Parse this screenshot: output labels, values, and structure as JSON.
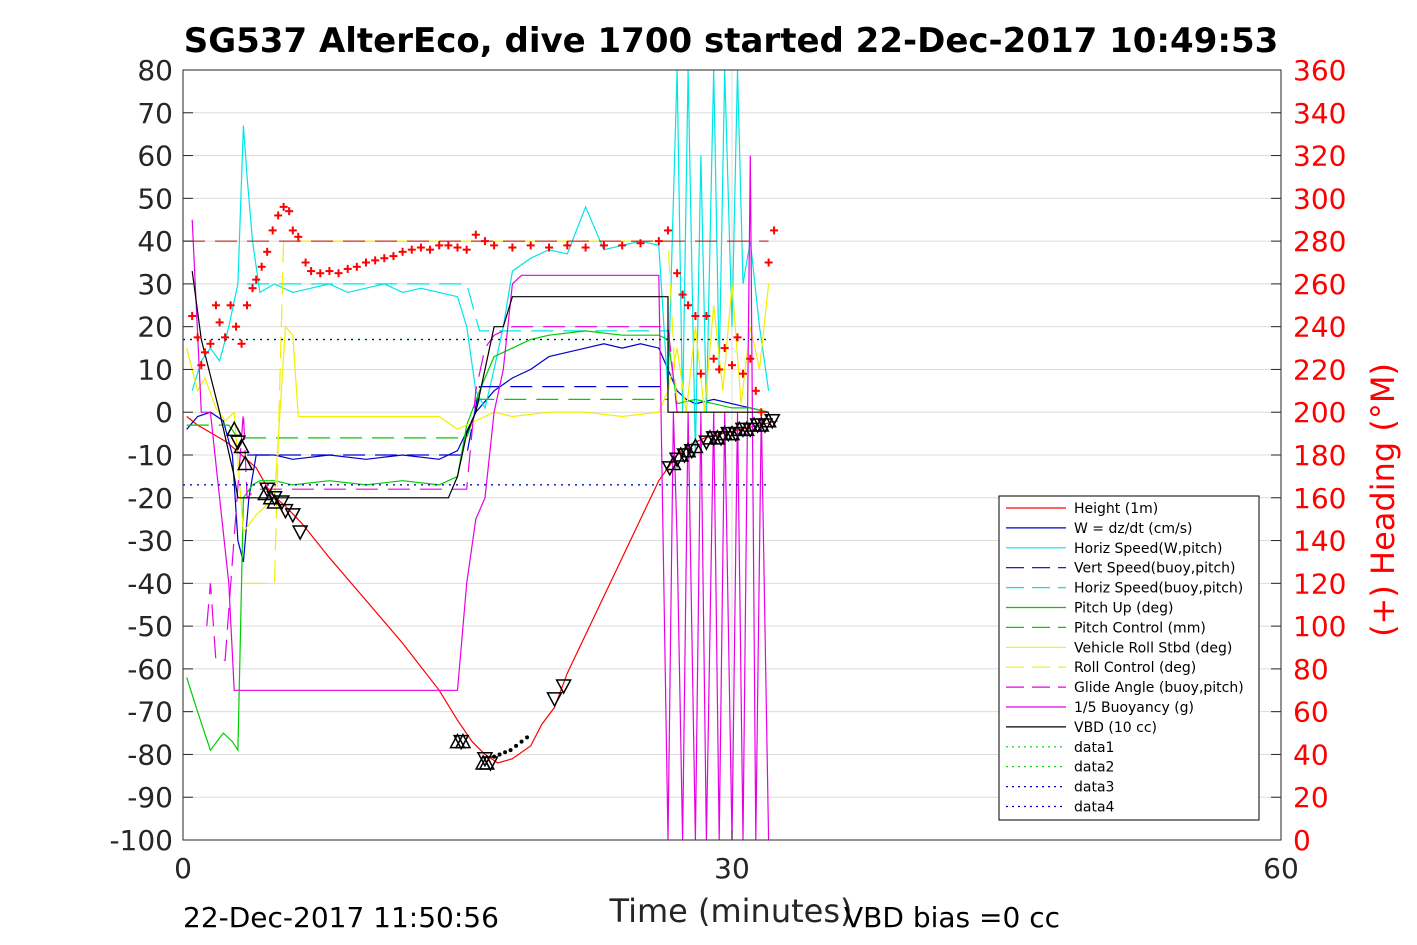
{
  "title": "SG537 AlterEco, dive 1700 started 22-Dec-2017 10:49:53",
  "footer_left": "22-Dec-2017 11:50:56",
  "footer_right": "VBD bias =0 cc",
  "colors": {
    "red": "#ff0000",
    "blue": "#0000cc",
    "cyan": "#00e5e5",
    "green": "#00cc00",
    "yellow": "#f0f000",
    "magenta": "#e600e6",
    "black": "#000000",
    "grid": "#dcdcdc",
    "axis": "#262626"
  },
  "chart_data": {
    "type": "line",
    "title": "SG537 AlterEco, dive 1700 started 22-Dec-2017 10:49:53",
    "xlabel": "Time (minutes)",
    "ylabel": "",
    "y2label": "(+) Heading (°M)",
    "xlim": [
      0,
      60
    ],
    "ylim": [
      -100,
      80
    ],
    "y2lim": [
      0,
      360
    ],
    "x_ticks": [
      0,
      30,
      60
    ],
    "y_ticks": [
      80,
      70,
      60,
      50,
      40,
      30,
      20,
      10,
      0,
      -10,
      -20,
      -30,
      -40,
      -50,
      -60,
      -70,
      -80,
      -90,
      -100
    ],
    "y2_ticks": [
      360,
      340,
      320,
      300,
      280,
      260,
      240,
      220,
      200,
      180,
      160,
      140,
      120,
      100,
      80,
      60,
      40,
      20,
      0
    ],
    "grid": true,
    "legend_position": "lower-right",
    "legend": [
      {
        "label": "Height (1m)",
        "color": "#ff0000",
        "style": "solid"
      },
      {
        "label": "W = dz/dt (cm/s)",
        "color": "#0000cc",
        "style": "solid"
      },
      {
        "label": "Horiz Speed(W,pitch)",
        "color": "#00e5e5",
        "style": "solid"
      },
      {
        "label": "Vert Speed(buoy,pitch)",
        "color": "#0000cc",
        "style": "dashed"
      },
      {
        "label": "Horiz Speed(buoy,pitch)",
        "color": "#00e5e5",
        "style": "dashed"
      },
      {
        "label": "Pitch Up (deg)",
        "color": "#00cc00",
        "style": "solid"
      },
      {
        "label": "Pitch Control (mm)",
        "color": "#00cc00",
        "style": "dashed"
      },
      {
        "label": "Vehicle Roll Stbd (deg)",
        "color": "#f0f000",
        "style": "solid"
      },
      {
        "label": "Roll Control (deg)",
        "color": "#f0f000",
        "style": "dashed"
      },
      {
        "label": "Glide Angle (buoy,pitch)",
        "color": "#e600e6",
        "style": "dashed"
      },
      {
        "label": "1/5 Buoyancy (g)",
        "color": "#e600e6",
        "style": "solid"
      },
      {
        "label": "VBD (10 cc)",
        "color": "#000000",
        "style": "solid"
      },
      {
        "label": "data1",
        "color": "#00cc00",
        "style": "dotted"
      },
      {
        "label": "data2",
        "color": "#00cc00",
        "style": "dotted"
      },
      {
        "label": "data3",
        "color": "#0000cc",
        "style": "dotted"
      },
      {
        "label": "data4",
        "color": "#0000cc",
        "style": "dotted"
      }
    ],
    "series": [
      {
        "name": "Height (1m)",
        "color": "#ff0000",
        "style": "solid",
        "x": [
          0.2,
          0.8,
          1.6,
          2.4,
          3.2,
          4.0,
          4.8,
          5.6,
          6.5,
          8.0,
          10.0,
          12.0,
          14.0,
          15.0,
          15.8,
          16.5,
          17.2,
          18.0,
          19.0,
          19.6,
          20.3,
          21.0,
          22.0,
          23.0,
          24.0,
          25.0,
          26.0,
          26.5,
          27.0,
          27.5,
          28.0,
          28.5,
          29.0,
          29.5,
          30.0,
          30.5,
          31.0,
          31.5,
          32.0,
          32.5
        ],
        "y": [
          -1,
          -3,
          -5,
          -7,
          -10,
          -13,
          -19,
          -22,
          -26,
          -34,
          -44,
          -54,
          -65,
          -72,
          -77,
          -80,
          -82,
          -81,
          -78,
          -73,
          -69,
          -61,
          -52,
          -43,
          -34,
          -25,
          -16,
          -13,
          -10,
          -8,
          -7,
          -6,
          -5.5,
          -5,
          -4.5,
          -4,
          -3.5,
          -3,
          -2.5,
          -2
        ]
      },
      {
        "name": "W = dz/dt (cm/s)",
        "color": "#0000cc",
        "style": "solid",
        "x": [
          0.2,
          0.8,
          1.5,
          2.2,
          2.7,
          3.0,
          3.3,
          3.6,
          4.0,
          5.0,
          6.0,
          8.0,
          10.0,
          12.0,
          14.0,
          15.0,
          16.0,
          17.0,
          18.0,
          19.0,
          20.0,
          21.0,
          22.0,
          23.0,
          24.0,
          25.0,
          26.0,
          26.5,
          27.0,
          27.5,
          28.0,
          29.0,
          30.0,
          31.0,
          32.0
        ],
        "y": [
          -4,
          -1,
          0,
          -2,
          -10,
          -30,
          -35,
          -20,
          -10,
          -10,
          -11,
          -10,
          -11,
          -10,
          -11,
          -9,
          0,
          5,
          8,
          10,
          13,
          14,
          15,
          16,
          15,
          16,
          15,
          10,
          5,
          3,
          2,
          3,
          2,
          1,
          0
        ]
      },
      {
        "name": "Horiz Speed(W,pitch)",
        "color": "#00e5e5",
        "style": "solid",
        "x": [
          0.5,
          1.0,
          1.5,
          2.0,
          2.5,
          3.0,
          3.3,
          3.5,
          3.8,
          4.2,
          5.0,
          6.0,
          7.0,
          8.0,
          9.0,
          10.0,
          11.0,
          12.0,
          13.0,
          14.0,
          15.0,
          15.5,
          16.0,
          16.5,
          17.0,
          17.5,
          18.0,
          19.0,
          20.0,
          21.0,
          22.0,
          23.0,
          24.0,
          25.0,
          26.0,
          26.5,
          27.0,
          27.3,
          27.6,
          28.0,
          28.3,
          28.6,
          29.0,
          29.3,
          29.6,
          30.0,
          30.3,
          30.6,
          31.0,
          31.5,
          32.0
        ],
        "y": [
          5,
          12,
          15,
          12,
          20,
          30,
          67,
          55,
          40,
          28,
          30,
          28,
          29,
          30,
          28,
          29,
          30,
          28,
          29,
          28,
          27,
          20,
          5,
          1,
          10,
          20,
          33,
          36,
          38,
          37,
          48,
          38,
          39,
          40,
          39,
          5,
          80,
          0,
          80,
          -10,
          60,
          0,
          80,
          10,
          80,
          20,
          80,
          30,
          40,
          20,
          5
        ]
      },
      {
        "name": "Vert Speed(buoy,pitch)",
        "color": "#0000cc",
        "style": "dashed",
        "x": [
          3.5,
          15.5,
          16.2,
          26.5
        ],
        "y": [
          -10,
          -10,
          6,
          6
        ]
      },
      {
        "name": "Horiz Speed(buoy,pitch)",
        "color": "#00e5e5",
        "style": "dashed",
        "x": [
          3.5,
          15.5,
          16.2,
          26.5
        ],
        "y": [
          30,
          30,
          19,
          19
        ]
      },
      {
        "name": "Pitch Up (deg)",
        "color": "#00cc00",
        "style": "solid",
        "x": [
          0.2,
          0.8,
          1.5,
          2.2,
          2.7,
          3.0,
          3.3,
          3.8,
          4.2,
          5.0,
          6.0,
          8.0,
          10.0,
          12.0,
          14.0,
          15.0,
          15.5,
          16.2,
          17.0,
          18.0,
          19.0,
          20.0,
          22.0,
          24.0,
          26.0,
          26.5,
          27.0,
          28.0,
          29.0,
          30.0,
          31.0,
          32.0
        ],
        "y": [
          -62,
          -70,
          -79,
          -75,
          -77,
          -79,
          -20,
          -17,
          -16,
          -16,
          -17,
          -16,
          -17,
          -16,
          -17,
          -15,
          -3,
          5,
          13,
          15,
          17,
          18,
          19,
          18,
          18,
          17,
          2,
          3,
          2,
          1,
          1,
          0
        ]
      },
      {
        "name": "Pitch Control (mm)",
        "color": "#00cc00",
        "style": "dashed",
        "x": [
          0.2,
          2.5,
          3.0,
          15.5,
          16.2,
          26.5
        ],
        "y": [
          -3,
          -3,
          -6,
          -6,
          3,
          3
        ]
      },
      {
        "name": "Vehicle Roll Stbd (deg)",
        "color": "#f0f000",
        "style": "solid",
        "x": [
          0.2,
          0.8,
          1.2,
          1.8,
          2.3,
          2.8,
          3.3,
          4.0,
          5.0,
          5.6,
          6.0,
          6.3,
          8.0,
          10.0,
          12.0,
          14.0,
          15.0,
          16.0,
          17.0,
          18.0,
          20.0,
          22.0,
          24.0,
          26.0,
          26.5,
          27.0,
          27.5,
          28.0,
          28.5,
          29.0,
          29.5,
          30.0,
          30.5,
          31.0,
          31.5,
          32.0
        ],
        "y": [
          15,
          5,
          8,
          1,
          -2,
          0,
          -28,
          -24,
          -20,
          20,
          18,
          -1,
          -1,
          -1,
          -1,
          -1,
          -4,
          -2,
          0,
          -1,
          0,
          0,
          -1,
          0,
          5,
          15,
          0,
          20,
          0,
          25,
          5,
          30,
          2,
          20,
          10,
          30
        ]
      },
      {
        "name": "Roll Control (deg)",
        "color": "#f0f000",
        "style": "dashed",
        "x": [
          3.3,
          5.0,
          5.5,
          26.5,
          27.0,
          32.0
        ],
        "y": [
          -40,
          -40,
          40,
          40,
          0,
          0
        ]
      },
      {
        "name": "Glide Angle (buoy,pitch)",
        "color": "#e600e6",
        "style": "dashed",
        "x": [
          1.3,
          1.5,
          1.8,
          2.3,
          3.3,
          3.5,
          4.0,
          15.5,
          16.0,
          16.5,
          17.0,
          18.0,
          19.0,
          26.5,
          27.0
        ],
        "y": [
          -50,
          -40,
          -58,
          -58,
          0,
          -20,
          -18,
          -18,
          5,
          15,
          18,
          20,
          20,
          20,
          0
        ]
      },
      {
        "name": "1/5 Buoyancy (g)",
        "color": "#e600e6",
        "style": "solid",
        "x": [
          0.5,
          1.0,
          1.5,
          2.0,
          2.5,
          2.8,
          3.0,
          3.3,
          4.0,
          8.0,
          12.0,
          14.0,
          15.0,
          15.5,
          16.0,
          16.5,
          17.0,
          17.5,
          18.0,
          18.5,
          19.0,
          20.0,
          22.0,
          24.0,
          26.0,
          26.5,
          26.8,
          27.0,
          27.3,
          27.6,
          28.0,
          28.3,
          28.6,
          29.0,
          29.3,
          29.6,
          30.0,
          30.3,
          30.6,
          31.0,
          31.3,
          31.6,
          32.0
        ],
        "y": [
          45,
          0,
          0,
          -20,
          -40,
          -65,
          -65,
          -65,
          -65,
          -65,
          -65,
          -65,
          -65,
          -40,
          -25,
          -20,
          0,
          10,
          30,
          32,
          32,
          32,
          32,
          32,
          32,
          -100,
          0,
          -30,
          -100,
          0,
          -100,
          0,
          -100,
          0,
          -100,
          0,
          -100,
          0,
          -100,
          60,
          -100,
          0,
          -100
        ]
      },
      {
        "name": "VBD (10 cc)",
        "color": "#000000",
        "style": "solid",
        "x": [
          0.5,
          1.0,
          2.0,
          2.8,
          3.0,
          4.0,
          8.0,
          12.0,
          14.0,
          14.5,
          15.0,
          15.5,
          16.0,
          16.5,
          17.0,
          17.5,
          18.0,
          19.0,
          20.0,
          22.0,
          24.0,
          26.5,
          26.5,
          27.0,
          28.0,
          32.0
        ],
        "y": [
          33,
          17,
          0,
          -15,
          -20,
          -20,
          -20,
          -20,
          -20,
          -20,
          -15,
          -5,
          0,
          10,
          20,
          20,
          27,
          27,
          27,
          27,
          27,
          27,
          0,
          0,
          0,
          0
        ]
      },
      {
        "name": "data1",
        "color": "#00cc00",
        "style": "dotted",
        "x": [
          0,
          32
        ],
        "y": [
          17,
          17
        ]
      },
      {
        "name": "data2",
        "color": "#00cc00",
        "style": "dotted",
        "x": [
          0,
          32
        ],
        "y": [
          -17,
          -17
        ]
      },
      {
        "name": "data3",
        "color": "#0000cc",
        "style": "dotted",
        "x": [
          0,
          32
        ],
        "y": [
          17,
          17
        ]
      },
      {
        "name": "data4",
        "color": "#0000cc",
        "style": "dotted",
        "x": [
          0,
          32
        ],
        "y": [
          -17,
          -17
        ]
      }
    ],
    "heading_reference": {
      "y2": 280,
      "color": "#cc0000",
      "style": "dashed",
      "x": [
        0,
        32
      ]
    },
    "heading_points": {
      "color": "#ff0000",
      "x": [
        0.5,
        0.8,
        1.0,
        1.2,
        1.5,
        1.8,
        2.0,
        2.3,
        2.6,
        2.9,
        3.2,
        3.5,
        3.8,
        4.0,
        4.3,
        4.6,
        4.9,
        5.2,
        5.5,
        5.8,
        6.0,
        6.3,
        6.7,
        7.0,
        7.5,
        8.0,
        8.5,
        9.0,
        9.5,
        10.0,
        10.5,
        11.0,
        11.5,
        12.0,
        12.5,
        13.0,
        13.5,
        14.0,
        14.5,
        15.0,
        15.5,
        16.0,
        16.5,
        17.0,
        18.0,
        19.0,
        20.0,
        21.0,
        22.0,
        23.0,
        24.0,
        25.0,
        26.0,
        26.5,
        27.0,
        27.3,
        27.6,
        28.0,
        28.3,
        28.6,
        29.0,
        29.3,
        29.6,
        30.0,
        30.3,
        30.6,
        31.0,
        31.3,
        31.6,
        32.0,
        32.3
      ],
      "y2": [
        245,
        235,
        222,
        228,
        232,
        250,
        242,
        235,
        250,
        240,
        232,
        250,
        258,
        262,
        268,
        275,
        285,
        292,
        296,
        294,
        285,
        282,
        270,
        266,
        265,
        266,
        265,
        267,
        268,
        270,
        271,
        272,
        273,
        275,
        276,
        277,
        276,
        278,
        278,
        277,
        276,
        283,
        280,
        278,
        277,
        278,
        277,
        278,
        277,
        278,
        278,
        279,
        280,
        285,
        265,
        255,
        250,
        245,
        218,
        245,
        225,
        220,
        230,
        222,
        235,
        218,
        225,
        210,
        200,
        270,
        285
      ]
    },
    "marker_points": {
      "color": "#000000",
      "up_x": [
        2.8,
        3.2,
        3.4,
        4.5,
        4.8,
        5.0,
        15.0,
        15.3,
        16.4,
        16.6,
        26.8,
        27.2,
        27.6,
        28.0,
        28.8,
        29.2,
        29.6,
        30.0,
        30.4,
        30.8,
        31.2,
        31.6,
        32.0
      ],
      "up_y": [
        -4,
        -8,
        -12,
        -19,
        -20,
        -21,
        -77,
        -77,
        -82,
        -82,
        -12,
        -10,
        -9,
        -8,
        -6,
        -6,
        -5,
        -5,
        -4,
        -4,
        -3,
        -3,
        -2
      ],
      "down_x": [
        3.0,
        4.6,
        5.0,
        5.4,
        5.6,
        6.0,
        6.4,
        15.2,
        16.5,
        16.8,
        20.3,
        20.8,
        26.6,
        27.0,
        27.4,
        27.8,
        28.6,
        29.0,
        29.4,
        29.8,
        30.2,
        30.6,
        31.0,
        31.4,
        31.8,
        32.2
      ],
      "down_y": [
        -7,
        -18,
        -20,
        -21,
        -23,
        -24,
        -28,
        -77,
        -81,
        -82,
        -67,
        -64,
        -13,
        -11,
        -10,
        -9,
        -7,
        -6,
        -6,
        -5,
        -5,
        -4,
        -4,
        -3,
        -3,
        -2
      ],
      "dot_x": [
        17.0,
        17.3,
        17.6,
        17.9,
        18.2,
        18.5,
        18.8
      ],
      "dot_y": [
        -80.5,
        -80,
        -79.5,
        -79,
        -78,
        -77,
        -76
      ]
    }
  }
}
